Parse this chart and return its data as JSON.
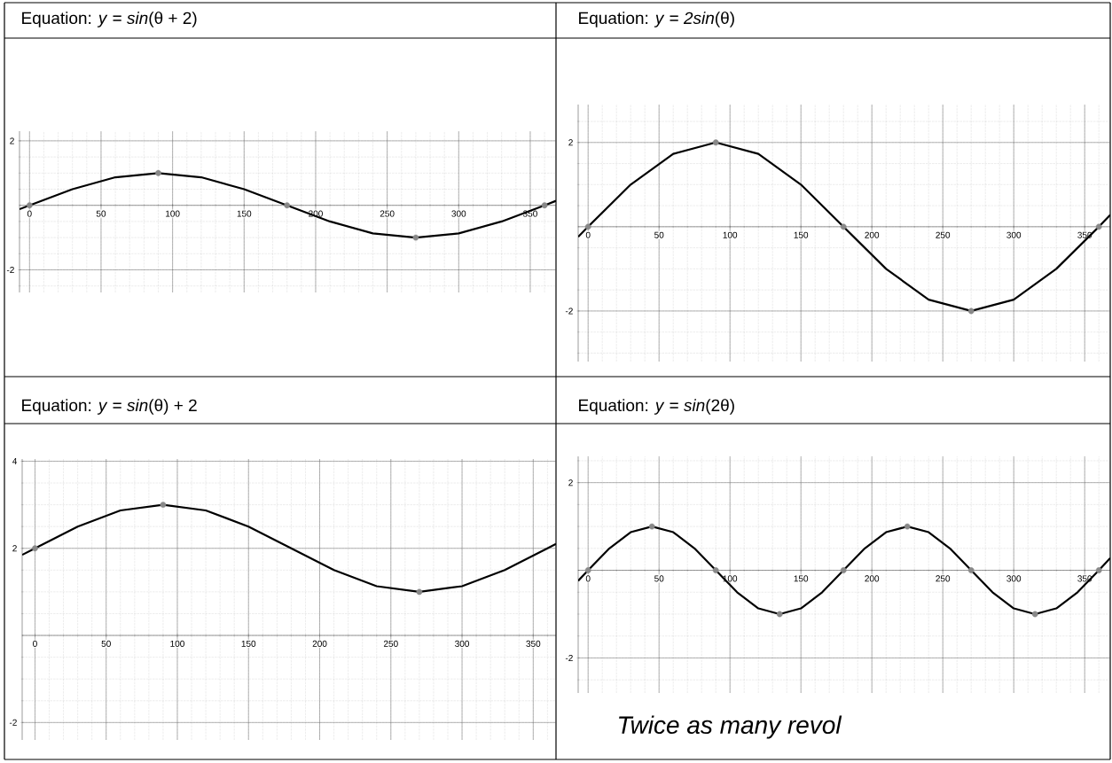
{
  "chart_data": [
    {
      "type": "line",
      "title": "Equation: *y* = *sin*(θ + 2)",
      "xlim": [
        -7,
        368
      ],
      "ylim": [
        -2.7,
        2.3
      ],
      "xticks": [
        0,
        50,
        100,
        150,
        200,
        250,
        300,
        350
      ],
      "yticks": [
        -2,
        2
      ],
      "grid": true,
      "series": [
        {
          "color": "#000000",
          "x": [
            -7,
            0,
            30,
            60,
            90,
            120,
            150,
            180,
            210,
            240,
            270,
            300,
            330,
            360,
            368
          ],
          "values": [
            -0.12,
            0,
            0.5,
            0.87,
            1,
            0.87,
            0.5,
            0,
            -0.5,
            -0.87,
            -1,
            -0.87,
            -0.5,
            0,
            0.14
          ]
        },
        {
          "type": "scatter",
          "marker": "circle",
          "color": "#888888",
          "x": [
            0,
            90,
            180,
            270,
            360
          ],
          "values": [
            0,
            1,
            0,
            -1,
            0
          ]
        }
      ]
    },
    {
      "type": "line",
      "title": "Equation: *y* = *2sin*(θ)",
      "xlim": [
        -7,
        368
      ],
      "ylim": [
        -3.2,
        2.9
      ],
      "xticks": [
        0,
        50,
        100,
        150,
        200,
        250,
        300,
        350
      ],
      "yticks": [
        -2,
        2
      ],
      "grid": true,
      "series": [
        {
          "color": "#000000",
          "x": [
            -7,
            0,
            30,
            60,
            90,
            120,
            150,
            180,
            210,
            240,
            270,
            300,
            330,
            360,
            368
          ],
          "values": [
            -0.24,
            0,
            1,
            1.73,
            2,
            1.73,
            1,
            0,
            -1,
            -1.73,
            -2,
            -1.73,
            -1,
            0,
            0.28
          ]
        },
        {
          "type": "scatter",
          "marker": "circle",
          "color": "#888888",
          "x": [
            0,
            90,
            180,
            270,
            360
          ],
          "values": [
            0,
            2,
            0,
            -2,
            0
          ]
        }
      ]
    },
    {
      "type": "line",
      "title": "Equation: *y* = *sin*(θ) + 2",
      "xlim": [
        -9,
        366
      ],
      "ylim": [
        -2.4,
        4.05
      ],
      "xticks": [
        0,
        50,
        100,
        150,
        200,
        250,
        300,
        350
      ],
      "yticks": [
        -2,
        2,
        4
      ],
      "grid": true,
      "series": [
        {
          "color": "#000000",
          "x": [
            -9,
            0,
            30,
            60,
            90,
            120,
            150,
            180,
            210,
            240,
            270,
            300,
            330,
            360,
            366
          ],
          "values": [
            1.85,
            2,
            2.5,
            2.87,
            3,
            2.87,
            2.5,
            2,
            1.5,
            1.13,
            1,
            1.13,
            1.5,
            2,
            2.1
          ]
        },
        {
          "type": "scatter",
          "marker": "circle",
          "color": "#888888",
          "x": [
            0,
            90,
            270
          ],
          "values": [
            2,
            3,
            1
          ]
        }
      ]
    },
    {
      "type": "line",
      "title": "Equation: *y* = *sin*(2θ)",
      "xlim": [
        -7,
        368
      ],
      "ylim": [
        -2.8,
        2.6
      ],
      "xticks": [
        0,
        50,
        100,
        150,
        200,
        250,
        300,
        350
      ],
      "yticks": [
        -2,
        2
      ],
      "grid": true,
      "annotations": [
        "Twice as many revol"
      ],
      "series": [
        {
          "color": "#000000",
          "x": [
            -7,
            0,
            15,
            30,
            45,
            60,
            75,
            90,
            105,
            120,
            135,
            150,
            165,
            180,
            195,
            210,
            225,
            240,
            255,
            270,
            285,
            300,
            315,
            330,
            345,
            360,
            368
          ],
          "values": [
            -0.24,
            0,
            0.5,
            0.87,
            1,
            0.87,
            0.5,
            0,
            -0.5,
            -0.87,
            -1,
            -0.87,
            -0.5,
            0,
            0.5,
            0.87,
            1,
            0.87,
            0.5,
            0,
            -0.5,
            -0.87,
            -1,
            -0.87,
            -0.5,
            0,
            0.28
          ]
        },
        {
          "type": "scatter",
          "marker": "circle",
          "color": "#888888",
          "x": [
            0,
            45,
            90,
            135,
            180,
            225,
            270,
            315,
            360
          ],
          "values": [
            0,
            1,
            0,
            -1,
            0,
            1,
            0,
            -1,
            0
          ]
        }
      ]
    }
  ]
}
